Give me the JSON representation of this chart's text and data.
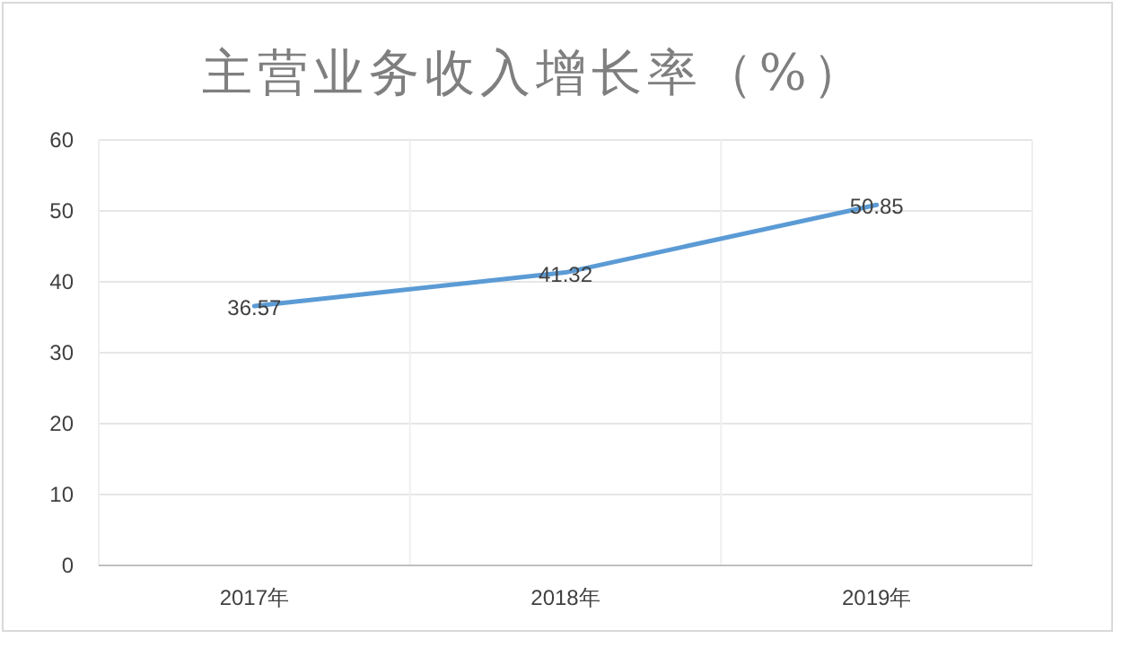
{
  "chart_data": {
    "type": "line",
    "title": "主营业务收入增长率（%）",
    "categories": [
      "2017年",
      "2018年",
      "2019年"
    ],
    "series": [
      {
        "color": "#5b9bd5",
        "values": [
          36.57,
          41.32,
          50.85
        ]
      }
    ],
    "ylim": [
      0,
      60
    ],
    "yticks": [
      0,
      10,
      20,
      30,
      40,
      50,
      60
    ],
    "grid": true,
    "data_labels": true
  }
}
